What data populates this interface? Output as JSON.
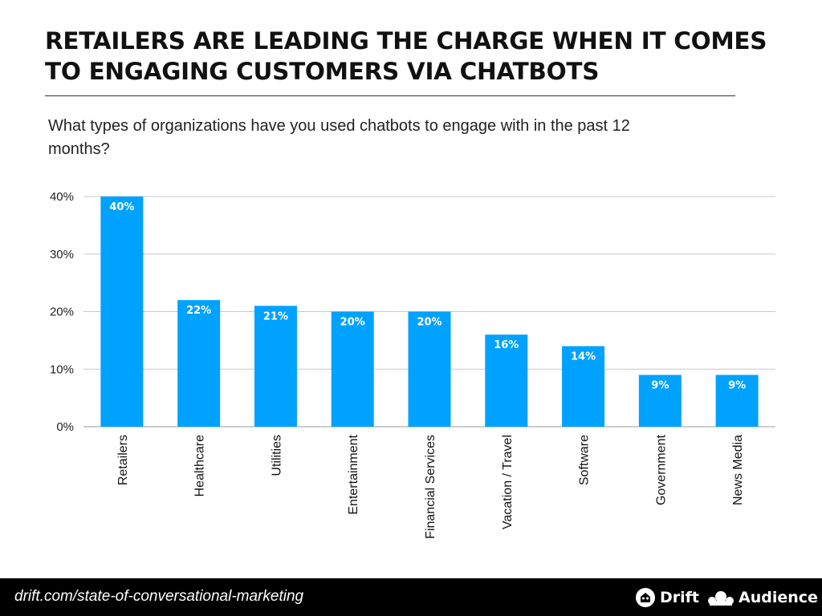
{
  "title": "RETAILERS ARE LEADING THE CHARGE WHEN IT COMES TO ENGAGING CUSTOMERS VIA CHATBOTS",
  "subtitle": "What types of organizations have you used chatbots to engage with in the past 12 months?",
  "footer": {
    "url": "drift.com/state-of-conversational-marketing",
    "brand_drift": "Drift",
    "brand_audience": "Audience",
    "drift_icon": "drift-logo-icon",
    "audience_icon": "audience-logo-icon"
  },
  "colors": {
    "bar": "#00A2FF",
    "gridline": "#c8c8c8",
    "footer_bg": "#000000"
  },
  "chart_data": {
    "type": "bar",
    "categories": [
      "Retailers",
      "Healthcare",
      "Utilities",
      "Entertainment",
      "Financial Services",
      "Vacation / Travel",
      "Software",
      "Government",
      "News Media"
    ],
    "values": [
      40,
      22,
      21,
      20,
      20,
      16,
      14,
      9,
      9
    ],
    "data_labels": [
      "40%",
      "22%",
      "21%",
      "20%",
      "20%",
      "16%",
      "14%",
      "9%",
      "9%"
    ],
    "yticks": [
      "0%",
      "10%",
      "20%",
      "30%",
      "40%"
    ],
    "ytick_values": [
      0,
      10,
      20,
      30,
      40
    ],
    "ylim": [
      0,
      40
    ],
    "grid": true,
    "legend": "none",
    "xlabel": "",
    "ylabel": ""
  }
}
